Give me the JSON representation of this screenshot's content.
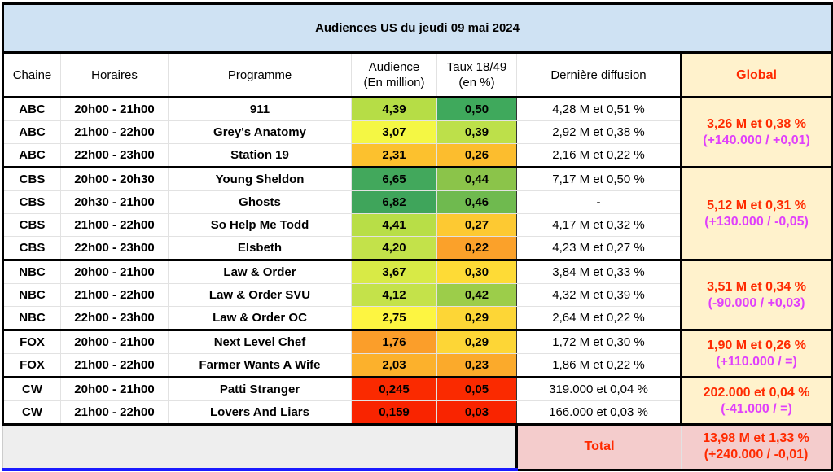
{
  "title": "Audiences US du jeudi 09 mai 2024",
  "headers": {
    "chaine": "Chaine",
    "horaires": "Horaires",
    "programme": "Programme",
    "audience_l1": "Audience",
    "audience_l2": "(En million)",
    "taux_l1": "Taux 18/49",
    "taux_l2": "(en %)",
    "derniere": "Dernière diffusion",
    "global": "Global"
  },
  "rows": [
    {
      "chaine": "ABC",
      "horaires": "20h00 - 21h00",
      "programme": "911",
      "audience": "4,39",
      "taux": "0,50",
      "derniere": "4,28 M et 0,51 %",
      "aud_color": "#b6dd46",
      "taux_color": "#3fa95c"
    },
    {
      "chaine": "ABC",
      "horaires": "21h00 - 22h00",
      "programme": "Grey's Anatomy",
      "audience": "3,07",
      "taux": "0,39",
      "derniere": "2,92 M et 0,38 %",
      "aud_color": "#f4f744",
      "taux_color": "#bde04a"
    },
    {
      "chaine": "ABC",
      "horaires": "22h00 - 23h00",
      "programme": "Station 19",
      "audience": "2,31",
      "taux": "0,26",
      "derniere": "2,16 M et 0,22 %",
      "aud_color": "#fcc12e",
      "taux_color": "#fcbd2e"
    },
    {
      "chaine": "CBS",
      "horaires": "20h00 - 20h30",
      "programme": "Young Sheldon",
      "audience": "6,65",
      "taux": "0,44",
      "derniere": "7,17 M et 0,50 %",
      "aud_color": "#42a85c",
      "taux_color": "#8bc44a"
    },
    {
      "chaine": "CBS",
      "horaires": "20h30 - 21h00",
      "programme": "Ghosts",
      "audience": "6,82",
      "taux": "0,46",
      "derniere": "-",
      "aud_color": "#3fa55b",
      "taux_color": "#6fba4f"
    },
    {
      "chaine": "CBS",
      "horaires": "21h00 - 22h00",
      "programme": "So Help Me Todd",
      "audience": "4,41",
      "taux": "0,27",
      "derniere": "4,17 M et 0,32 %",
      "aud_color": "#b8de47",
      "taux_color": "#fdc932"
    },
    {
      "chaine": "CBS",
      "horaires": "22h00 - 23h00",
      "programme": "Elsbeth",
      "audience": "4,20",
      "taux": "0,22",
      "derniere": "4,23 M et 0,27 %",
      "aud_color": "#c3e24a",
      "taux_color": "#fba12a"
    },
    {
      "chaine": "NBC",
      "horaires": "20h00 - 21h00",
      "programme": "Law & Order",
      "audience": "3,67",
      "taux": "0,30",
      "derniere": "3,84 M et 0,33 %",
      "aud_color": "#d8ea46",
      "taux_color": "#fedb36"
    },
    {
      "chaine": "NBC",
      "horaires": "21h00 - 22h00",
      "programme": "Law & Order SVU",
      "audience": "4,12",
      "taux": "0,42",
      "derniere": "4,32 M et 0,39 %",
      "aud_color": "#c4e24a",
      "taux_color": "#9ccd4a"
    },
    {
      "chaine": "NBC",
      "horaires": "22h00 - 23h00",
      "programme": "Law & Order OC",
      "audience": "2,75",
      "taux": "0,29",
      "derniere": "2,64 M et 0,22 %",
      "aud_color": "#fdf541",
      "taux_color": "#fdd636"
    },
    {
      "chaine": "FOX",
      "horaires": "20h00 - 21h00",
      "programme": "Next Level Chef",
      "audience": "1,76",
      "taux": "0,29",
      "derniere": "1,72 M et 0,30 %",
      "aud_color": "#fb9e2a",
      "taux_color": "#fdd636"
    },
    {
      "chaine": "FOX",
      "horaires": "21h00 - 22h00",
      "programme": "Farmer Wants A Wife",
      "audience": "2,03",
      "taux": "0,23",
      "derniere": "1,86 M et 0,22 %",
      "aud_color": "#fcb12c",
      "taux_color": "#fbaa2b"
    },
    {
      "chaine": "CW",
      "horaires": "20h00 - 21h00",
      "programme": "Patti Stranger",
      "audience": "0,245",
      "taux": "0,05",
      "derniere": "319.000 et 0,04 %",
      "aud_color": "#fa2a00",
      "taux_color": "#fa2a00"
    },
    {
      "chaine": "CW",
      "horaires": "21h00 - 22h00",
      "programme": "Lovers And Liars",
      "audience": "0,159",
      "taux": "0,03",
      "derniere": "166.000 et 0,03 %",
      "aud_color": "#f92400",
      "taux_color": "#f92400"
    }
  ],
  "globals": [
    {
      "network": "ABC",
      "main": "3,26 M et 0,38 %",
      "delta": "(+140.000 / +0,01)"
    },
    {
      "network": "CBS",
      "main": "5,12 M et 0,31 %",
      "delta": "(+130.000 / -0,05)"
    },
    {
      "network": "NBC",
      "main": "3,51 M et 0,34 %",
      "delta": "(-90.000 / +0,03)"
    },
    {
      "network": "FOX",
      "main": "1,90 M et 0,26 %",
      "delta": "(+110.000 / =)"
    },
    {
      "network": "CW",
      "main": "202.000 et 0,04 %",
      "delta": "(-41.000 / =)"
    }
  ],
  "total": {
    "label": "Total",
    "main": "13,98 M et 1,33 %",
    "delta": "(+240.000 / -0,01)"
  },
  "colors": {
    "title_bg": "#cfe2f3",
    "global_bg": "#fff2cc",
    "total_bg": "#f4cccc",
    "accent_red": "#ff2a00",
    "accent_magenta": "#e040fb"
  }
}
